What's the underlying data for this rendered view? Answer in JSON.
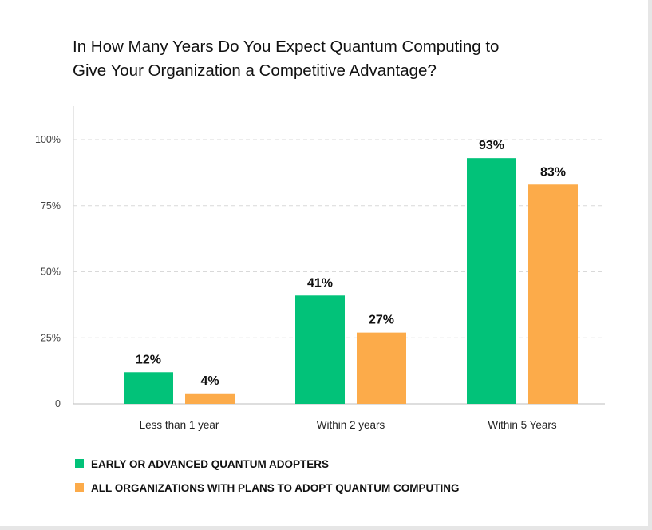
{
  "chart_data": {
    "type": "bar",
    "title_lines": [
      "In How Many Years Do You Expect Quantum Computing to",
      "Give Your Organization a Competitive Advantage?"
    ],
    "categories": [
      "Less than 1 year",
      "Within 2 years",
      "Within 5 Years"
    ],
    "series": [
      {
        "name": "EARLY OR ADVANCED QUANTUM ADOPTERS",
        "color": "#02c279",
        "values": [
          12,
          41,
          93
        ],
        "labels": [
          "12%",
          "41%",
          "93%"
        ]
      },
      {
        "name": "ALL ORGANIZATIONS WITH PLANS TO ADOPT QUANTUM COMPUTING",
        "color": "#fcab4a",
        "values": [
          4,
          27,
          83
        ],
        "labels": [
          "4%",
          "27%",
          "83%"
        ]
      }
    ],
    "yticks": [
      {
        "value": 0,
        "label": "0"
      },
      {
        "value": 25,
        "label": "25%"
      },
      {
        "value": 50,
        "label": "50%"
      },
      {
        "value": 75,
        "label": "75%"
      },
      {
        "value": 100,
        "label": "100%"
      }
    ],
    "ylim": [
      0,
      100
    ],
    "grid": true,
    "legend_position": "bottom-left"
  }
}
